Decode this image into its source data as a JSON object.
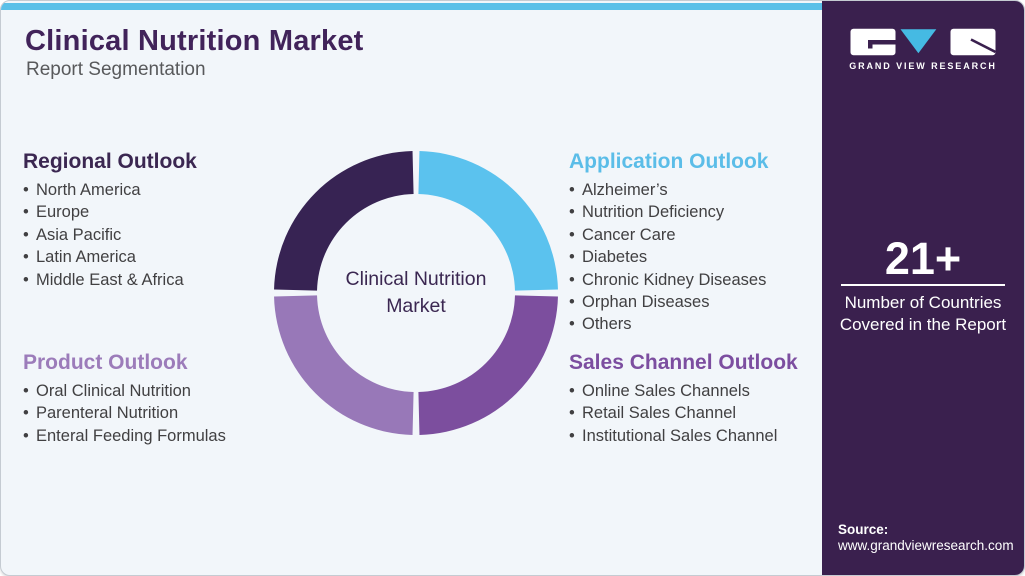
{
  "header": {
    "title": "Clinical Nutrition Market",
    "subtitle": "Report Segmentation"
  },
  "sections": {
    "regional": {
      "heading": "Regional Outlook",
      "heading_color": "#3B2751",
      "items": [
        "North America",
        "Europe",
        "Asia Pacific",
        "Latin America",
        "Middle East & Africa"
      ]
    },
    "application": {
      "heading": "Application Outlook",
      "heading_color": "#5BBDE8",
      "items": [
        "Alzheimer’s",
        "Nutrition Deficiency",
        "Cancer Care",
        "Diabetes",
        "Chronic Kidney Diseases",
        "Orphan Diseases",
        "Others"
      ]
    },
    "product": {
      "heading": "Product Outlook",
      "heading_color": "#9C7CBA",
      "items": [
        "Oral Clinical Nutrition",
        "Parenteral Nutrition",
        "Enteral Feeding Formulas"
      ]
    },
    "sales": {
      "heading": "Sales Channel Outlook",
      "heading_color": "#7C4EA0",
      "items": [
        "Online Sales Channels",
        "Retail Sales Channel",
        "Institutional Sales Channel"
      ]
    }
  },
  "chart_data": {
    "type": "pie",
    "variant": "donut",
    "title": "Clinical Nutrition Market",
    "center_label_line1": "Clinical Nutrition",
    "center_label_line2": "Market",
    "legend_position": "none",
    "segments": [
      {
        "name": "Regional Outlook",
        "value": 25,
        "color": "#372353",
        "position": "top-left"
      },
      {
        "name": "Application Outlook",
        "value": 25,
        "color": "#5BC2EE",
        "position": "top-right"
      },
      {
        "name": "Sales Channel Outlook",
        "value": 25,
        "color": "#7C4E9E",
        "position": "bottom-right"
      },
      {
        "name": "Product Outlook",
        "value": 25,
        "color": "#9878B8",
        "position": "bottom-left"
      }
    ]
  },
  "sidebar": {
    "brand_name": "GRAND VIEW RESEARCH",
    "stat_value": "21+",
    "stat_label_line1": "Number of Countries",
    "stat_label_line2": "Covered in the Report",
    "source_label": "Source:",
    "source_url": "www.grandviewresearch.com"
  },
  "colors": {
    "top_bar": "#5BC0E8",
    "main_background": "#F2F6FA",
    "sidebar_background": "#3A204E",
    "title_text": "#41235A",
    "subtitle_text": "#58595B",
    "body_text": "#414042",
    "donut_center_text": "#3B2751",
    "logo_triangle": "#45BAE3"
  }
}
